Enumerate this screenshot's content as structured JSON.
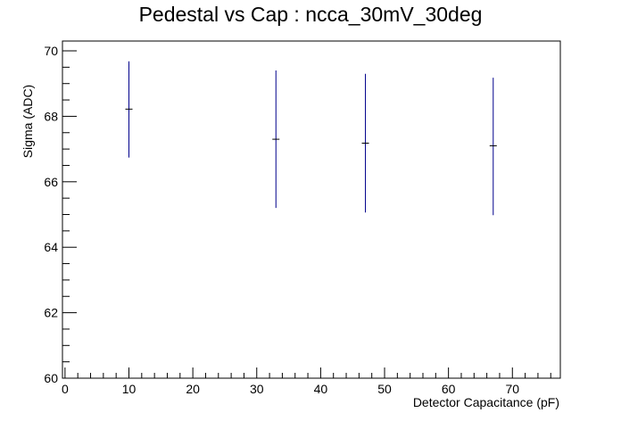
{
  "chart_data": {
    "type": "scatter",
    "title": "Pedestal vs Cap : ncca_30mV_30deg",
    "xlabel": "Detector Capacitance (pF)",
    "ylabel": "Sigma (ADC)",
    "xlim": [
      -0.4,
      77.5
    ],
    "ylim": [
      60,
      70.3
    ],
    "x_major_ticks": [
      0,
      10,
      20,
      30,
      40,
      50,
      60,
      70
    ],
    "y_major_ticks": [
      60,
      62,
      64,
      66,
      68,
      70
    ],
    "x_minor_step": 2,
    "y_minor_step": 0.5,
    "grid": false,
    "marker_color": "#00008b",
    "points": [
      {
        "x": 10,
        "y": 68.22,
        "y_low": 66.74,
        "y_high": 69.68
      },
      {
        "x": 33,
        "y": 67.3,
        "y_low": 65.2,
        "y_high": 69.4
      },
      {
        "x": 47,
        "y": 67.18,
        "y_low": 65.06,
        "y_high": 69.3
      },
      {
        "x": 67,
        "y": 67.1,
        "y_low": 64.98,
        "y_high": 69.18
      }
    ]
  }
}
